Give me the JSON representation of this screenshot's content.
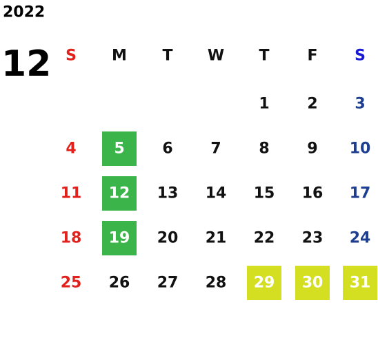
{
  "calendar": {
    "year": "2022",
    "month": "12",
    "weekdays": [
      "S",
      "M",
      "T",
      "W",
      "T",
      "F",
      "S"
    ],
    "weeks": [
      [
        null,
        null,
        null,
        null,
        1,
        2,
        3
      ],
      [
        4,
        5,
        6,
        7,
        8,
        9,
        10
      ],
      [
        11,
        12,
        13,
        14,
        15,
        16,
        17
      ],
      [
        18,
        19,
        20,
        21,
        22,
        23,
        24
      ],
      [
        25,
        26,
        27,
        28,
        29,
        30,
        31
      ]
    ],
    "highlights": [
      {
        "color": "#3bb44a",
        "days": [
          5,
          12,
          19
        ]
      },
      {
        "color": "#d5df22",
        "days": [
          29,
          30,
          31
        ]
      }
    ]
  }
}
